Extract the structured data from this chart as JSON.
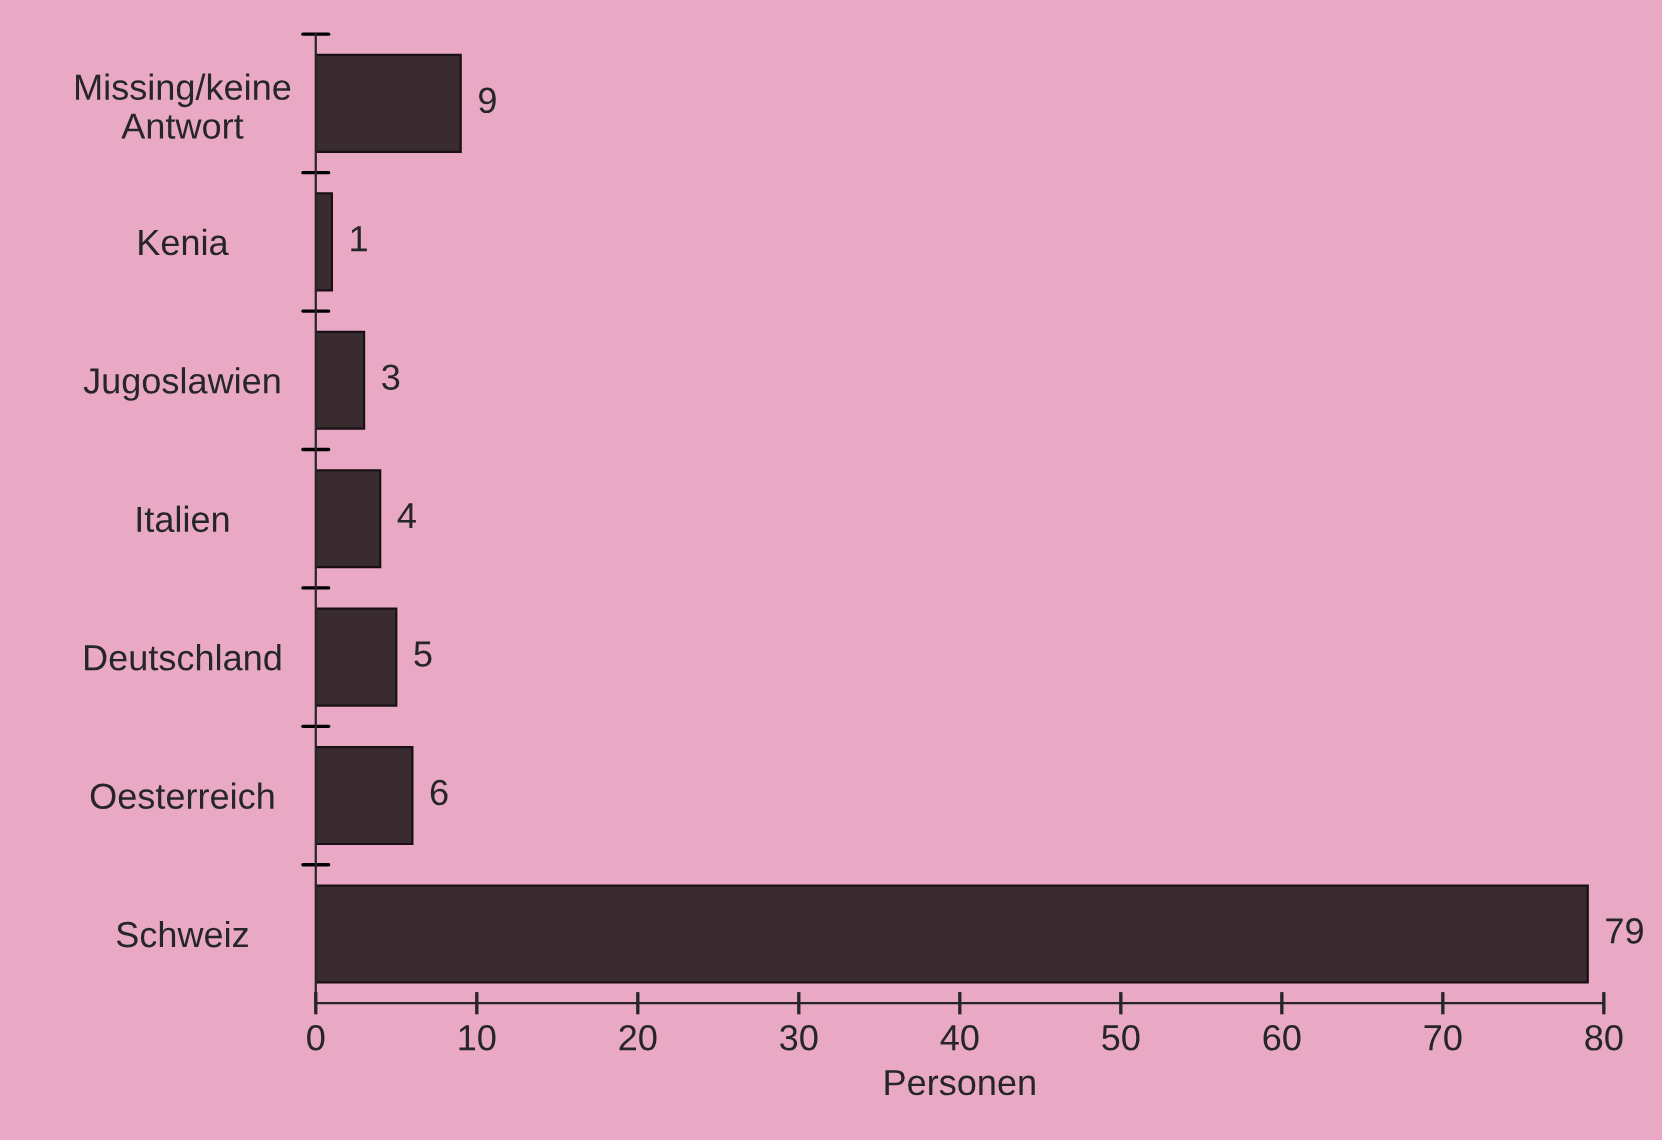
{
  "chart_data": {
    "type": "bar",
    "orientation": "horizontal",
    "xlabel": "Personen",
    "categories": [
      "Missing/keine\nAntwort",
      "Kenia",
      "Jugoslawien",
      "Italien",
      "Deutschland",
      "Oesterreich",
      "Schweiz"
    ],
    "values": [
      9,
      1,
      3,
      4,
      5,
      6,
      79
    ],
    "color": "#3a2b31",
    "xlim": [
      0,
      80
    ],
    "xticks": [
      0,
      10,
      20,
      30,
      40,
      50,
      60,
      70,
      80
    ],
    "grid": false,
    "data_labels": true
  }
}
